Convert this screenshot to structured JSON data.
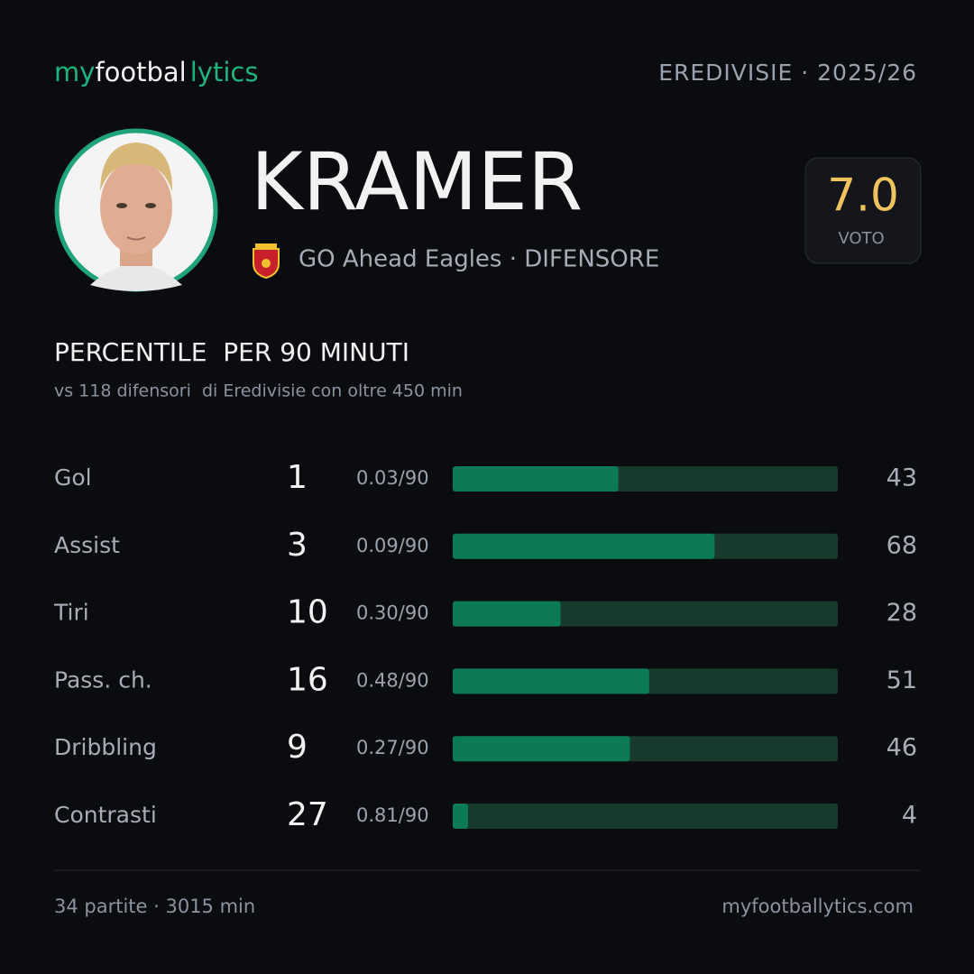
{
  "brand": [
    "my",
    "footbal",
    "lytics"
  ],
  "header": {
    "league": "EREDIVISIE · 2025/26"
  },
  "player": {
    "name": "KRAMER",
    "team": "GO Ahead Eagles · DIFENSORE",
    "rating": "7.0",
    "rating_label": "VOTO"
  },
  "section": {
    "title": "PERCENTILE  PER 90 MINUTI",
    "subtitle": "vs 118 difensori  di Eredivisie con oltre 450 min"
  },
  "stats": {
    "xlim": [
      0,
      100
    ],
    "colors": {
      "track": "#173a2c",
      "fill": "#0b7a55"
    },
    "rows": [
      {
        "label": "Gol",
        "total": 1,
        "per90": "0.03/90",
        "percentile": 43
      },
      {
        "label": "Assist",
        "total": 3,
        "per90": "0.09/90",
        "percentile": 68
      },
      {
        "label": "Tiri",
        "total": 10,
        "per90": "0.30/90",
        "percentile": 28
      },
      {
        "label": "Pass. ch.",
        "total": 16,
        "per90": "0.48/90",
        "percentile": 51
      },
      {
        "label": "Dribbling",
        "total": 9,
        "per90": "0.27/90",
        "percentile": 46
      },
      {
        "label": "Contrasti",
        "total": 27,
        "per90": "0.81/90",
        "percentile": 4
      }
    ]
  },
  "footer": {
    "matches": "34 partite · 3015 min",
    "site": "myfootballytics.com"
  }
}
